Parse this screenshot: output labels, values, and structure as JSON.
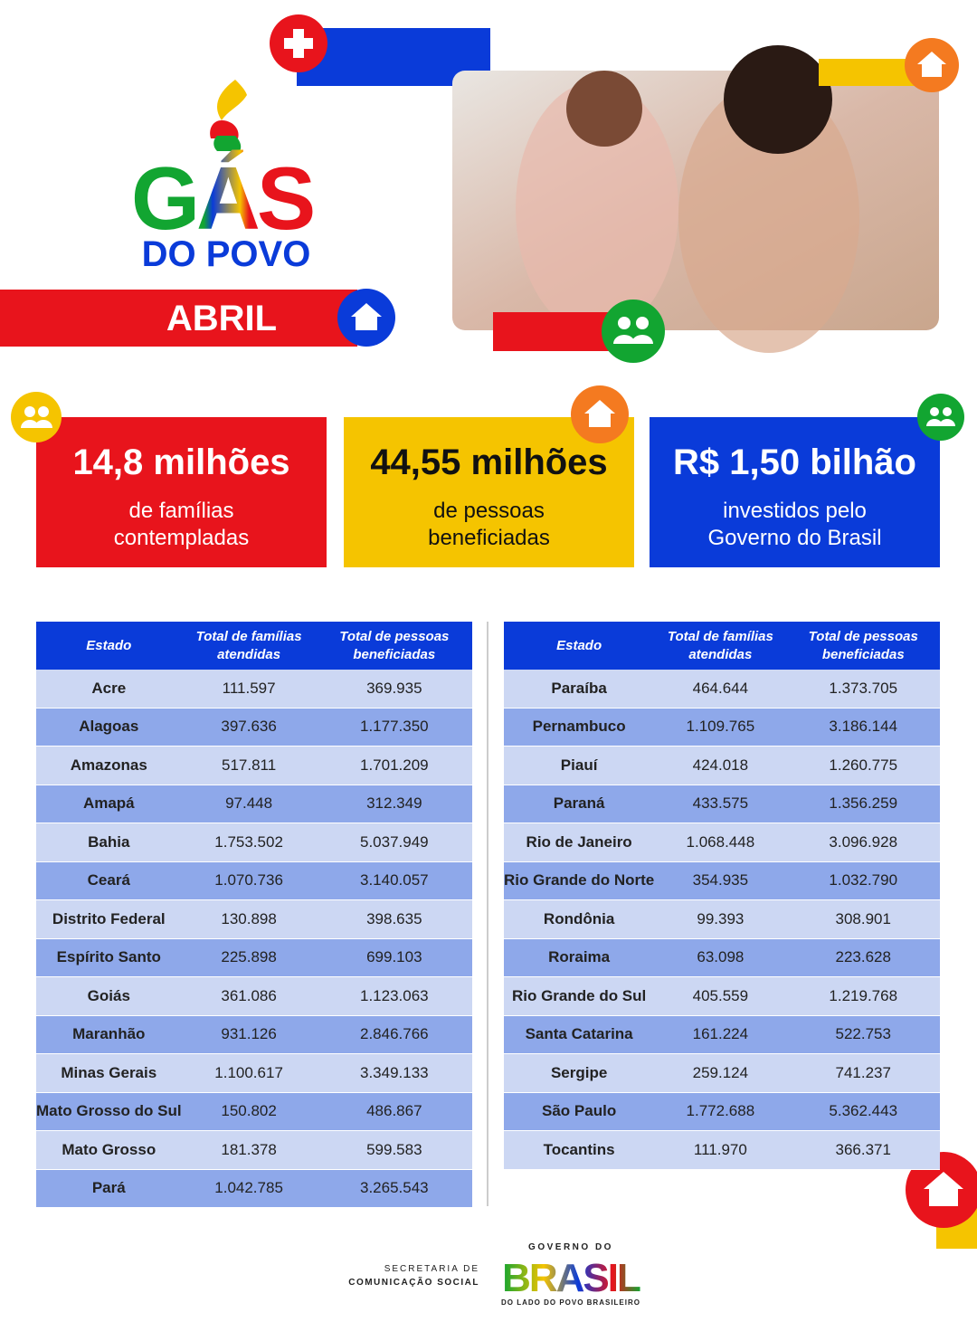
{
  "header": {
    "logo_title": "GÁS",
    "logo_subtitle": "DO POVO",
    "month": "ABRIL"
  },
  "stats": [
    {
      "value": "14,8 milhões",
      "label": "de famílias contempladas"
    },
    {
      "value": "44,55 milhões",
      "label": "de pessoas beneficiadas"
    },
    {
      "value": "R$ 1,50 bilhão",
      "label": "investidos pelo Governo do Brasil"
    }
  ],
  "tables": [
    {
      "columns": [
        "Estado",
        "Total de famílias atendidas",
        "Total de pessoas beneficiadas"
      ],
      "rows": [
        [
          "Acre",
          "111.597",
          "369.935"
        ],
        [
          "Alagoas",
          "397.636",
          "1.177.350"
        ],
        [
          "Amazonas",
          "517.811",
          "1.701.209"
        ],
        [
          "Amapá",
          "97.448",
          "312.349"
        ],
        [
          "Bahia",
          "1.753.502",
          "5.037.949"
        ],
        [
          "Ceará",
          "1.070.736",
          "3.140.057"
        ],
        [
          "Distrito Federal",
          "130.898",
          "398.635"
        ],
        [
          "Espírito Santo",
          "225.898",
          "699.103"
        ],
        [
          "Goiás",
          "361.086",
          "1.123.063"
        ],
        [
          "Maranhão",
          "931.126",
          "2.846.766"
        ],
        [
          "Minas Gerais",
          "1.100.617",
          "3.349.133"
        ],
        [
          "Mato Grosso do Sul",
          "150.802",
          "486.867"
        ],
        [
          "Mato Grosso",
          "181.378",
          "599.583"
        ],
        [
          "Pará",
          "1.042.785",
          "3.265.543"
        ]
      ]
    },
    {
      "columns": [
        "Estado",
        "Total de famílias atendidas",
        "Total de pessoas beneficiadas"
      ],
      "rows": [
        [
          "Paraíba",
          "464.644",
          "1.373.705"
        ],
        [
          "Pernambuco",
          "1.109.765",
          "3.186.144"
        ],
        [
          "Piauí",
          "424.018",
          "1.260.775"
        ],
        [
          "Paraná",
          "433.575",
          "1.356.259"
        ],
        [
          "Rio de Janeiro",
          "1.068.448",
          "3.096.928"
        ],
        [
          "Rio Grande do Norte",
          "354.935",
          "1.032.790"
        ],
        [
          "Rondônia",
          "99.393",
          "308.901"
        ],
        [
          "Roraima",
          "63.098",
          "223.628"
        ],
        [
          "Rio Grande do Sul",
          "405.559",
          "1.219.768"
        ],
        [
          "Santa Catarina",
          "161.224",
          "522.753"
        ],
        [
          "Sergipe",
          "259.124",
          "741.237"
        ],
        [
          "São Paulo",
          "1.772.688",
          "5.362.443"
        ],
        [
          "Tocantins",
          "111.970",
          "366.371"
        ]
      ]
    }
  ],
  "footer": {
    "secretaria_line1": "SECRETARIA DE",
    "secretaria_line2": "COMUNICAÇÃO SOCIAL",
    "gov_top": "GOVERNO DO",
    "gov_name": "BRASIL",
    "gov_slogan": "DO LADO DO POVO BRASILEIRO"
  }
}
